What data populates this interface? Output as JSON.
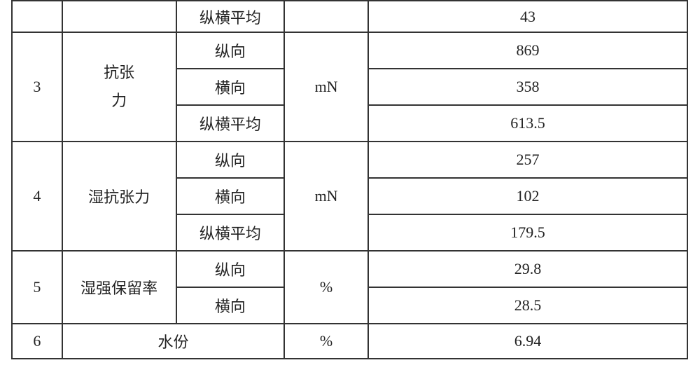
{
  "labels": {
    "vertical": "纵向",
    "horizontal": "横向",
    "avg": "纵横平均"
  },
  "row0": {
    "dir": "纵横平均",
    "value": "43"
  },
  "row3": {
    "idx": "3",
    "name_line1": "抗张",
    "name_line2": "力",
    "unit": "mN",
    "v1": "869",
    "v2": "358",
    "v3": "613.5"
  },
  "row4": {
    "idx": "4",
    "name": "湿抗张力",
    "unit": "mN",
    "v1": "257",
    "v2": "102",
    "v3": "179.5"
  },
  "row5": {
    "idx": "5",
    "name": "湿强保留率",
    "unit": "%",
    "v1": "29.8",
    "v2": "28.5"
  },
  "row6": {
    "idx": "6",
    "name": "水份",
    "unit": "%",
    "v1": "6.94"
  },
  "style": {
    "border_color": "#333333",
    "bg_color": "#ffffff",
    "text_color": "#222222",
    "font_size_pt": 16,
    "font_family": "SimSun"
  }
}
